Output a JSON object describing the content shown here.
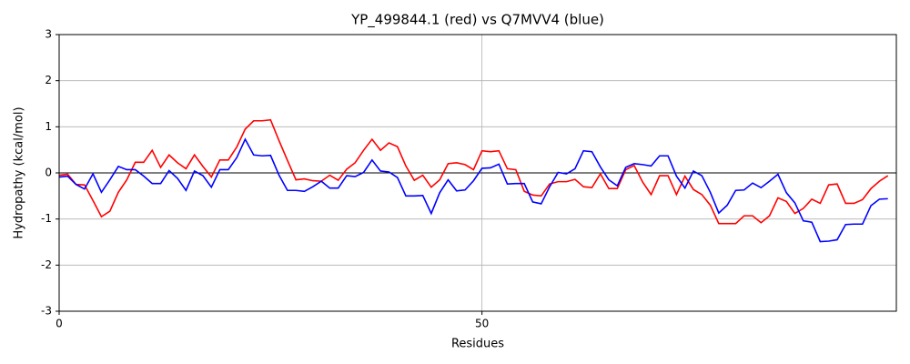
{
  "chart_data": {
    "type": "line",
    "title": "YP_499844.1 (red) vs Q7MVV4 (blue)",
    "x_label": "Residues",
    "y_label": "Hydropathy (kcal/mol)",
    "x": [
      0,
      1,
      2,
      3,
      4,
      5,
      6,
      7,
      8,
      9,
      10,
      11,
      12,
      13,
      14,
      15,
      16,
      17,
      18,
      19,
      20,
      21,
      22,
      23,
      24,
      25,
      26,
      27,
      28,
      29,
      30,
      31,
      32,
      33,
      34,
      35,
      36,
      37,
      38,
      39,
      40,
      41,
      42,
      43,
      44,
      45,
      46,
      47,
      48,
      49,
      50,
      51,
      52,
      53,
      54,
      55,
      56,
      57,
      58,
      59,
      60,
      61,
      62,
      63,
      64,
      65,
      66,
      67,
      68,
      69,
      70,
      71,
      72,
      73,
      74,
      75,
      76,
      77,
      78,
      79,
      80,
      81,
      82,
      83,
      84,
      85,
      86,
      87,
      88,
      89,
      90,
      91,
      92,
      93,
      94,
      95,
      96,
      97,
      98
    ],
    "series": [
      {
        "color": "#ff0000",
        "values": [
          -0.05,
          -0.03,
          -0.25,
          -0.26,
          -0.6,
          -0.95,
          -0.83,
          -0.42,
          -0.15,
          0.23,
          0.23,
          0.49,
          0.12,
          0.39,
          0.22,
          0.09,
          0.39,
          0.14,
          -0.09,
          0.28,
          0.28,
          0.56,
          0.95,
          1.13,
          1.13,
          1.15,
          0.7,
          0.27,
          -0.15,
          -0.13,
          -0.17,
          -0.18,
          -0.05,
          -0.16,
          0.08,
          0.22,
          0.49,
          0.73,
          0.49,
          0.65,
          0.57,
          0.15,
          -0.16,
          -0.05,
          -0.31,
          -0.15,
          0.2,
          0.22,
          0.18,
          0.07,
          0.48,
          0.46,
          0.48,
          0.09,
          0.07,
          -0.4,
          -0.48,
          -0.5,
          -0.24,
          -0.19,
          -0.19,
          -0.14,
          -0.3,
          -0.32,
          -0.02,
          -0.34,
          -0.34,
          0.07,
          0.16,
          -0.2,
          -0.47,
          -0.06,
          -0.06,
          -0.47,
          -0.07,
          -0.36,
          -0.47,
          -0.7,
          -1.1,
          -1.1,
          -1.1,
          -0.93,
          -0.93,
          -1.08,
          -0.93,
          -0.54,
          -0.62,
          -0.88,
          -0.77,
          -0.57,
          -0.66,
          -0.26,
          -0.24,
          -0.66,
          -0.66,
          -0.58,
          -0.34,
          -0.18,
          -0.06
        ]
      },
      {
        "color": "#0000ff",
        "values": [
          -0.09,
          -0.07,
          -0.25,
          -0.35,
          -0.02,
          -0.42,
          -0.15,
          0.14,
          0.07,
          0.07,
          -0.07,
          -0.23,
          -0.23,
          0.05,
          -0.12,
          -0.38,
          0.04,
          -0.06,
          -0.31,
          0.07,
          0.07,
          0.33,
          0.73,
          0.39,
          0.37,
          0.38,
          -0.05,
          -0.38,
          -0.38,
          -0.4,
          -0.3,
          -0.18,
          -0.33,
          -0.33,
          -0.06,
          -0.08,
          0.01,
          0.28,
          0.04,
          0.02,
          -0.1,
          -0.5,
          -0.5,
          -0.49,
          -0.88,
          -0.43,
          -0.15,
          -0.39,
          -0.37,
          -0.17,
          0.1,
          0.11,
          0.19,
          -0.24,
          -0.23,
          -0.23,
          -0.63,
          -0.67,
          -0.3,
          0.01,
          -0.02,
          0.09,
          0.48,
          0.46,
          0.13,
          -0.15,
          -0.28,
          0.12,
          0.2,
          0.18,
          0.15,
          0.37,
          0.37,
          -0.07,
          -0.33,
          0.04,
          -0.06,
          -0.42,
          -0.87,
          -0.7,
          -0.38,
          -0.37,
          -0.22,
          -0.32,
          -0.18,
          -0.03,
          -0.43,
          -0.65,
          -1.04,
          -1.07,
          -1.49,
          -1.48,
          -1.45,
          -1.12,
          -1.11,
          -1.11,
          -0.71,
          -0.57,
          -0.56
        ]
      }
    ],
    "xlim": [
      0,
      99
    ],
    "ylim": [
      -3,
      3
    ],
    "xticks": [
      0,
      50
    ],
    "yticks": [
      -3,
      -2,
      -1,
      0,
      1,
      2,
      3
    ],
    "grid": true,
    "hline": 0
  }
}
